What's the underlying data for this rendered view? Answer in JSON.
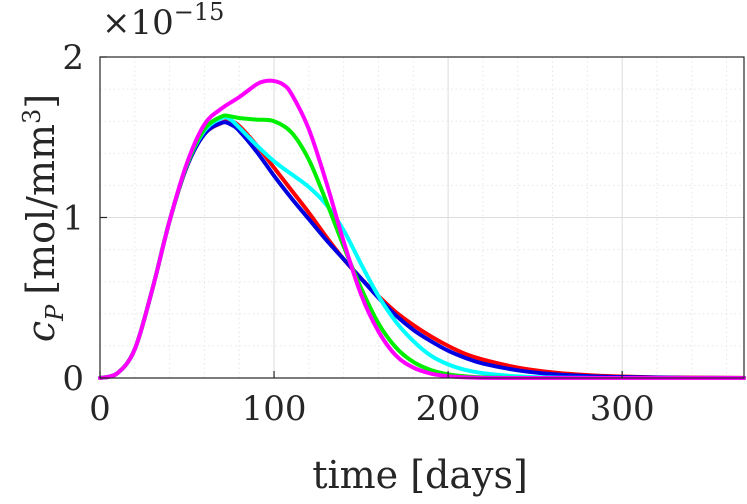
{
  "chart_data": {
    "type": "line",
    "title": "",
    "xlabel": "time [days]",
    "ylabel": "c_P [mol/mm^3]",
    "ylabel_parts": {
      "var": "c",
      "sub": "P",
      "unit_open": "[mol/mm",
      "unit_sup": "3",
      "unit_close": "]"
    },
    "exponent": {
      "prefix": "×10",
      "power": "−15"
    },
    "xlim": [
      0,
      370
    ],
    "ylim": [
      0,
      2
    ],
    "x_ticks": [
      0,
      100,
      200,
      300
    ],
    "x_tick_labels": [
      "0",
      "100",
      "200",
      "300"
    ],
    "y_ticks": [
      0,
      1,
      2
    ],
    "y_tick_labels": [
      "0",
      "1",
      "2"
    ],
    "grid": true,
    "series": [
      {
        "name": "red",
        "color": "#ff0000",
        "x": [
          0,
          10,
          20,
          30,
          40,
          50,
          60,
          70,
          75,
          80,
          90,
          100,
          110,
          120,
          130,
          140,
          150,
          160,
          170,
          180,
          190,
          200,
          210,
          220,
          240,
          260,
          280,
          300,
          320,
          340,
          370
        ],
        "y": [
          0,
          0.03,
          0.18,
          0.55,
          0.98,
          1.32,
          1.52,
          1.59,
          1.6,
          1.57,
          1.45,
          1.31,
          1.17,
          1.03,
          0.88,
          0.74,
          0.62,
          0.51,
          0.41,
          0.33,
          0.26,
          0.2,
          0.15,
          0.115,
          0.065,
          0.035,
          0.018,
          0.009,
          0.004,
          0.002,
          0.001
        ]
      },
      {
        "name": "blue",
        "color": "#0000e0",
        "x": [
          0,
          10,
          20,
          30,
          40,
          50,
          60,
          70,
          75,
          80,
          90,
          100,
          110,
          120,
          130,
          140,
          150,
          160,
          170,
          180,
          190,
          200,
          210,
          220,
          240,
          260,
          280,
          300,
          320,
          340,
          370
        ],
        "y": [
          0,
          0.03,
          0.18,
          0.55,
          0.98,
          1.32,
          1.52,
          1.59,
          1.58,
          1.54,
          1.41,
          1.26,
          1.12,
          0.99,
          0.86,
          0.74,
          0.62,
          0.5,
          0.39,
          0.3,
          0.23,
          0.17,
          0.125,
          0.09,
          0.048,
          0.024,
          0.012,
          0.006,
          0.003,
          0.001,
          0.0
        ]
      },
      {
        "name": "cyan",
        "color": "#00ffff",
        "x": [
          0,
          10,
          20,
          30,
          40,
          50,
          60,
          70,
          75,
          80,
          90,
          100,
          110,
          120,
          130,
          140,
          150,
          160,
          170,
          180,
          190,
          200,
          210,
          220,
          240,
          260,
          280,
          300,
          320,
          340,
          370
        ],
        "y": [
          0,
          0.03,
          0.18,
          0.55,
          0.98,
          1.33,
          1.54,
          1.62,
          1.61,
          1.56,
          1.45,
          1.35,
          1.27,
          1.19,
          1.08,
          0.92,
          0.71,
          0.51,
          0.35,
          0.23,
          0.14,
          0.085,
          0.05,
          0.03,
          0.01,
          0.003,
          0.001,
          0.0,
          0.0,
          0.0,
          0.0
        ]
      },
      {
        "name": "green",
        "color": "#00ee00",
        "x": [
          0,
          10,
          20,
          30,
          40,
          50,
          60,
          70,
          75,
          80,
          90,
          100,
          110,
          120,
          130,
          140,
          150,
          160,
          170,
          180,
          190,
          200,
          210,
          220,
          240,
          260,
          280,
          300,
          320,
          340,
          370
        ],
        "y": [
          0,
          0.03,
          0.18,
          0.55,
          0.98,
          1.33,
          1.55,
          1.63,
          1.63,
          1.62,
          1.61,
          1.6,
          1.53,
          1.36,
          1.1,
          0.82,
          0.56,
          0.34,
          0.19,
          0.1,
          0.05,
          0.023,
          0.01,
          0.004,
          0.001,
          0.0,
          0.0,
          0.0,
          0.0,
          0.0,
          0.0
        ]
      },
      {
        "name": "magenta",
        "color": "#ff00ff",
        "x": [
          0,
          10,
          20,
          30,
          40,
          50,
          60,
          70,
          80,
          90,
          95,
          100,
          105,
          110,
          120,
          130,
          140,
          150,
          160,
          170,
          180,
          190,
          200,
          210,
          220,
          240,
          260,
          280,
          300,
          320,
          340,
          370
        ],
        "y": [
          0,
          0.03,
          0.18,
          0.55,
          0.98,
          1.34,
          1.58,
          1.68,
          1.75,
          1.83,
          1.85,
          1.85,
          1.83,
          1.77,
          1.55,
          1.22,
          0.85,
          0.52,
          0.29,
          0.14,
          0.065,
          0.028,
          0.011,
          0.004,
          0.001,
          0.0,
          0.0,
          0.0,
          0.0,
          0.0,
          0.0,
          0.0
        ]
      }
    ]
  }
}
